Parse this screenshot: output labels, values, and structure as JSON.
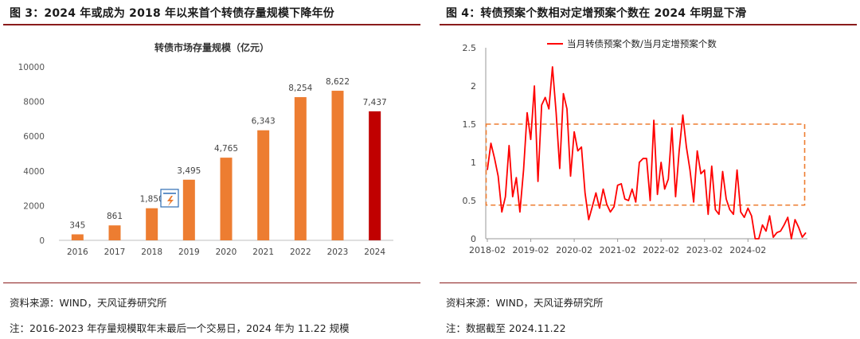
{
  "left_panel": {
    "figure_title": "图 3：2024 年或成为 2018 年以来首个转债存量规模下降年份",
    "source": "资料来源：WIND，天风证券研究所",
    "note": "注：2016-2023 年存量规模取年末最后一个交易日，2024 年为 11.22 规模"
  },
  "right_panel": {
    "figure_title": "图 4：转债预案个数相对定增预案个数在 2024 年明显下滑",
    "source": "资料来源：WIND，天风证券研究所",
    "note": "注：数据截至 2024.11.22"
  },
  "chart_data": [
    {
      "type": "bar",
      "title": "转债市场存量规模（亿元）",
      "categories": [
        "2016",
        "2017",
        "2018",
        "2019",
        "2020",
        "2021",
        "2022",
        "2023",
        "2024"
      ],
      "values": [
        345,
        861,
        1850,
        3495,
        4765,
        6343,
        8254,
        8622,
        7437
      ],
      "data_labels": [
        "345",
        "861",
        "1,850",
        "3,495",
        "4,765",
        "6,343",
        "8,254",
        "8,622",
        "7,437"
      ],
      "ylim": [
        0,
        10000
      ],
      "yticks": [
        0,
        2000,
        4000,
        6000,
        8000,
        10000
      ],
      "colors": {
        "bar": "#ED7D31",
        "highlight": "#C00000"
      },
      "highlight_index": 8,
      "grid": false,
      "legend": "none"
    },
    {
      "type": "line",
      "series": [
        {
          "name": "当月转债预案个数/当月定增预案个数",
          "color": "#FF0000",
          "values": [
            0.9,
            1.25,
            1.05,
            0.82,
            0.35,
            0.55,
            1.22,
            0.55,
            0.8,
            0.35,
            0.9,
            1.65,
            1.3,
            2.0,
            0.75,
            1.75,
            1.85,
            1.7,
            2.25,
            1.65,
            0.92,
            1.9,
            1.7,
            0.82,
            1.4,
            1.15,
            1.2,
            0.6,
            0.25,
            0.42,
            0.6,
            0.4,
            0.65,
            0.45,
            0.35,
            0.42,
            0.7,
            0.72,
            0.52,
            0.5,
            0.65,
            0.48,
            1.0,
            1.05,
            1.05,
            0.5,
            1.55,
            0.58,
            1.0,
            0.65,
            0.78,
            1.45,
            0.55,
            1.15,
            1.62,
            1.2,
            0.9,
            0.48,
            1.15,
            0.85,
            0.9,
            0.32,
            0.95,
            0.38,
            0.32,
            0.88,
            0.52,
            0.38,
            0.32,
            0.9,
            0.35,
            0.28,
            0.4,
            0.3,
            0.0,
            0.0,
            0.18,
            0.1,
            0.3,
            0.02,
            0.08,
            0.1,
            0.18,
            0.28,
            0.0,
            0.25,
            0.15,
            0.02,
            0.08
          ]
        }
      ],
      "x_tick_labels": [
        "2018-02",
        "2019-02",
        "2020-02",
        "2021-02",
        "2022-02",
        "2023-02",
        "2024-02"
      ],
      "ylim": [
        0,
        2.5
      ],
      "yticks": [
        "0",
        "0.5",
        "1",
        "1.5",
        "2",
        "2.5"
      ],
      "annotation": {
        "shape": "dashed-rectangle",
        "y_range": [
          0.44,
          1.5
        ],
        "color": "#ED7D31"
      },
      "grid": false,
      "legend": "top-center"
    }
  ]
}
